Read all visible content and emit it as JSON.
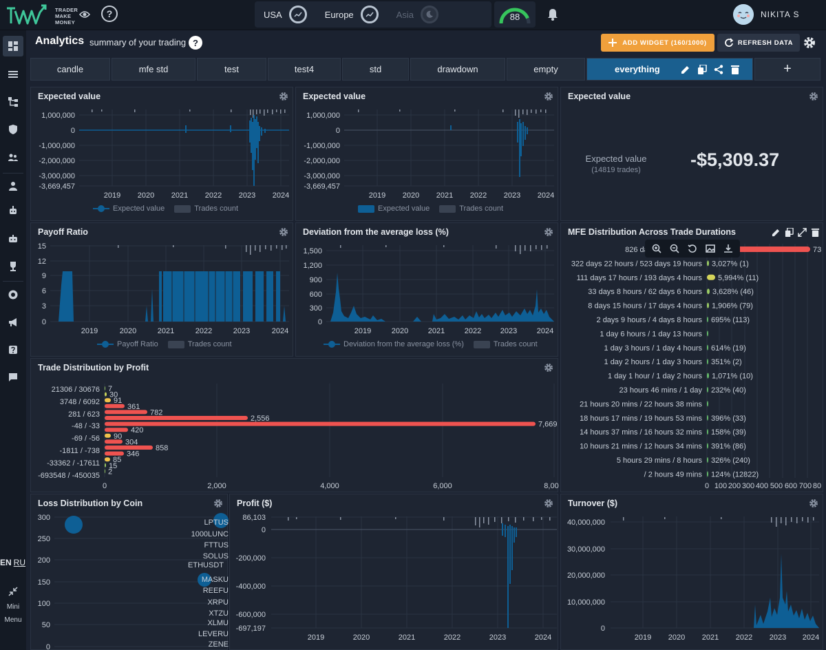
{
  "brand": {
    "line1": "TRADER",
    "line2": "MAKE",
    "line3": "MONEY"
  },
  "header": {
    "help": "?"
  },
  "markets": [
    {
      "name": "USA",
      "active": true,
      "icon": "trend-icon"
    },
    {
      "name": "Europe",
      "active": true,
      "icon": "trend-icon"
    },
    {
      "name": "Asia",
      "active": false,
      "icon": "moon-icon"
    }
  ],
  "score": {
    "value": "88",
    "fraction": 0.88
  },
  "user": {
    "name": "NIKITA S"
  },
  "sidebar": {
    "lang_en": "EN",
    "lang_ru": "RU",
    "mini_line1": "Mini",
    "mini_line2": "Menu"
  },
  "page": {
    "title": "Analytics",
    "subtitle": "summary of your trading",
    "help": "?"
  },
  "toolbar": {
    "add_widget": "ADD WIDGET (160/1000)",
    "refresh": "REFRESH DATA"
  },
  "tabs": [
    "candle",
    "mfe std",
    "test",
    "test4",
    "std",
    "drawdown",
    "empty",
    "everything"
  ],
  "tab_add": "+",
  "widgets": {
    "ev1": {
      "title": "Expected value",
      "y_ticks": [
        "1,000,000",
        "0",
        "-1,000,000",
        "-2,000,000",
        "-3,000,000",
        "-3,669,457"
      ],
      "x_ticks": [
        "2019",
        "2020",
        "2021",
        "2022",
        "2023",
        "2024"
      ],
      "legend": [
        "Expected value",
        "Trades count"
      ]
    },
    "ev2": {
      "title": "Expected value",
      "y_ticks": [
        "1,000,000",
        "0",
        "-1,000,000",
        "-2,000,000",
        "-3,000,000",
        "-3,669,457"
      ],
      "x_ticks": [
        "2019",
        "2020",
        "2021",
        "2022",
        "2023",
        "2024"
      ],
      "legend": [
        "Expected value",
        "Trades count"
      ]
    },
    "ev3": {
      "title": "Expected value",
      "label": "Expected value",
      "trades": "(14819 trades)",
      "value": "-$5,309.37"
    },
    "payoff": {
      "title": "Payoff Ratio",
      "y_ticks": [
        "15",
        "12",
        "9",
        "6",
        "3",
        "0"
      ],
      "x_ticks": [
        "2019",
        "2020",
        "2021",
        "2022",
        "2023",
        "2024"
      ],
      "legend": [
        "Payoff Ratio",
        "Trades count"
      ]
    },
    "deviation": {
      "title": "Deviation from the average loss (%)",
      "y_ticks": [
        "1,500",
        "1,200",
        "900",
        "600",
        "300",
        "0"
      ],
      "x_ticks": [
        "2019",
        "2020",
        "2021",
        "2022",
        "2023",
        "2024"
      ],
      "legend": [
        "Deviation from the average loss (%)",
        "Trades count"
      ]
    },
    "mfe": {
      "title": "MFE Distribution Across Trade Durations",
      "rows": [
        {
          "label": "826 days 19 hours / 12",
          "value": "73",
          "bar": 150,
          "color": "#ef5350"
        },
        {
          "label": "322 days 22 hours / 523 days 19 hours",
          "value": "3,027% (1)",
          "bar": 3,
          "color": "#9ccc65"
        },
        {
          "label": "111 days 17 hours / 193 days 4 hours",
          "value": "5,994% (11)",
          "bar": 12,
          "color": "#d4d45a"
        },
        {
          "label": "33 days 8 hours / 62 days 6 hours",
          "value": "3,628% (46)",
          "bar": 4,
          "color": "#9ccc65"
        },
        {
          "label": "8 days 15 hours / 17 days 4 hours",
          "value": "1,906% (79)",
          "bar": 3,
          "color": "#9ccc65"
        },
        {
          "label": "2 days 9 hours / 4 days 8 hours",
          "value": "695% (113)",
          "bar": 2,
          "color": "#66bb6a"
        },
        {
          "label": "1 day 6 hours / 1 day 13 hours",
          "value": "",
          "bar": 2,
          "color": "#66bb6a"
        },
        {
          "label": "1 day 3 hours / 1 day 4 hours",
          "value": "614% (19)",
          "bar": 2,
          "color": "#66bb6a"
        },
        {
          "label": "1 day 2 hours / 1 day 3 hours",
          "value": "351% (2)",
          "bar": 2,
          "color": "#66bb6a"
        },
        {
          "label": "1 day 1 hour / 1 day 2 hours",
          "value": "1,071% (10)",
          "bar": 3,
          "color": "#66bb6a"
        },
        {
          "label": "23 hours 46 mins / 1 day",
          "value": "232% (40)",
          "bar": 2,
          "color": "#66bb6a"
        },
        {
          "label": "21 hours 20 mins / 22 hours 38 mins",
          "value": "",
          "bar": 2,
          "color": "#66bb6a"
        },
        {
          "label": "18 hours 17 mins / 19 hours 53 mins",
          "value": "396% (33)",
          "bar": 2,
          "color": "#66bb6a"
        },
        {
          "label": "14 hours 37 mins / 16 hours 32 mins",
          "value": "158% (39)",
          "bar": 2,
          "color": "#66bb6a"
        },
        {
          "label": "10 hours 21 mins / 12 hours 34 mins",
          "value": "391% (86)",
          "bar": 2,
          "color": "#66bb6a"
        },
        {
          "label": "5 hours 29 mins / 8 hours",
          "value": "326% (240)",
          "bar": 2,
          "color": "#66bb6a"
        },
        {
          "label": "/ 2 hours 49 mins",
          "value": "124% (12822)",
          "bar": 2,
          "color": "#66bb6a"
        }
      ],
      "x_ticks": [
        "0",
        "100",
        "200",
        "300",
        "400",
        "500",
        "600",
        "700",
        "80"
      ]
    },
    "trade_dist": {
      "title": "Trade Distribution by Profit",
      "y_labels": [
        "21306 / 30676",
        "3748 / 6092",
        "281 / 623",
        "-48 / -33",
        "-69 / -56",
        "-1811 / -738",
        "-33362 / -17611",
        "-693548 / -450035"
      ],
      "bars": [
        {
          "value": "7",
          "len": 1,
          "color": "#9ccc65"
        },
        {
          "value": "30",
          "len": 3,
          "color": "#c9d45a"
        },
        {
          "value": "91",
          "len": 9,
          "color": "#f0c24b"
        },
        {
          "value": "361",
          "len": 29,
          "color": "#ef5350"
        },
        {
          "value": "782",
          "len": 62,
          "color": "#ef5350"
        },
        {
          "value": "2,556",
          "len": 208,
          "color": "#ef5350"
        },
        {
          "value": "7,669",
          "len": 626,
          "color": "#ef5350"
        },
        {
          "value": "420",
          "len": 34,
          "color": "#ef5350"
        },
        {
          "value": "90",
          "len": 9,
          "color": "#f0c24b"
        },
        {
          "value": "304",
          "len": 26,
          "color": "#ef5350"
        },
        {
          "value": "858",
          "len": 70,
          "color": "#ef5350"
        },
        {
          "value": "346",
          "len": 28,
          "color": "#ef5350"
        },
        {
          "value": "85",
          "len": 8,
          "color": "#f0c24b"
        },
        {
          "value": "15",
          "len": 2,
          "color": "#9ccc65"
        },
        {
          "value": "2",
          "len": 1,
          "color": "#9ccc65"
        }
      ],
      "x_ticks": [
        "0",
        "2,000",
        "4,000",
        "6,000",
        "8,00"
      ]
    },
    "loss_coin": {
      "title": "Loss Distribution by Coin",
      "y_ticks": [
        "300",
        "250",
        "200",
        "150",
        "100",
        "50",
        "0"
      ],
      "coins": [
        "LPTUS",
        "1000LUNC",
        "FTTUS",
        "SOLUS",
        "ETHUSDT",
        "MASKU",
        "REEFU",
        "XRPU",
        "XTZU",
        "XLMU",
        "LEVERU",
        "ZENE"
      ]
    },
    "profit": {
      "title": "Profit ($)",
      "y_ticks": [
        "86,103",
        "0",
        "-200,000",
        "-400,000",
        "-600,000",
        "-697,197"
      ],
      "x_ticks": [
        "2019",
        "2020",
        "2021",
        "2022",
        "2023",
        "2024"
      ]
    },
    "turnover": {
      "title": "Turnover ($)",
      "y_ticks": [
        "40,000,000",
        "30,000,000",
        "20,000,000",
        "10,000,000",
        "0"
      ],
      "x_ticks": [
        "2019",
        "2020",
        "2021",
        "2022",
        "2023",
        "2024"
      ]
    }
  },
  "colors": {
    "accent": "#f0a03c",
    "active_tab": "#1a5f8f",
    "series": "#0e5f95",
    "bar_red": "#ef5350"
  }
}
